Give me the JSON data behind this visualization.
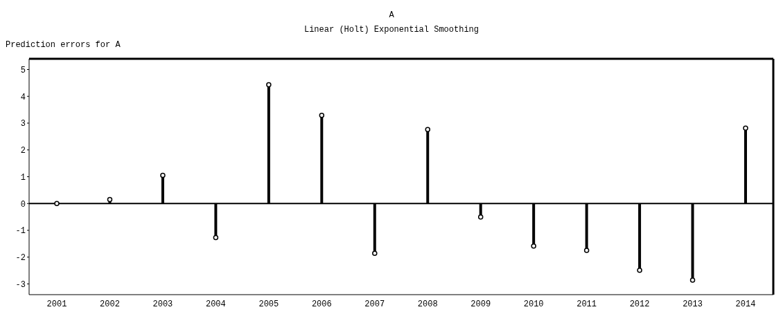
{
  "chart_data": {
    "type": "lollipop",
    "title": "A",
    "subtitle": "Linear (Holt) Exponential Smoothing",
    "ylabel": "Prediction errors for A",
    "categories": [
      "2001",
      "2002",
      "2003",
      "2004",
      "2005",
      "2006",
      "2007",
      "2008",
      "2009",
      "2010",
      "2011",
      "2012",
      "2013",
      "2014"
    ],
    "values": [
      0.0,
      0.15,
      1.05,
      -1.27,
      4.43,
      3.29,
      -1.86,
      2.76,
      -0.5,
      -1.59,
      -1.75,
      -2.49,
      -2.86,
      2.81
    ],
    "color": "#000000",
    "marker": "circle",
    "ylim": [
      -3.4,
      5.4
    ],
    "yticks": [
      -3,
      -2,
      -1,
      0,
      1,
      2,
      3,
      4,
      5
    ],
    "grid": false,
    "ref_lines": [
      {
        "axis": "y",
        "value": 0,
        "color": "#000000"
      }
    ]
  }
}
